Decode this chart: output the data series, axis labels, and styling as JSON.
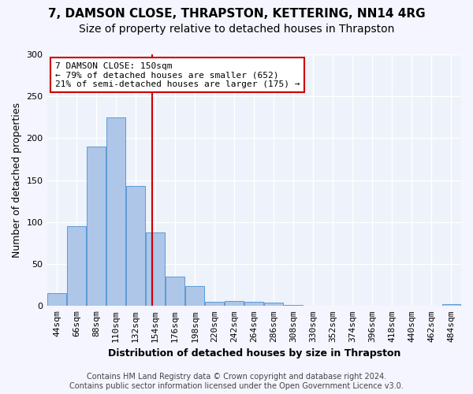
{
  "title": "7, DAMSON CLOSE, THRAPSTON, KETTERING, NN14 4RG",
  "subtitle": "Size of property relative to detached houses in Thrapston",
  "xlabel": "Distribution of detached houses by size in Thrapston",
  "ylabel": "Number of detached properties",
  "bar_color": "#aec6e8",
  "bar_edge_color": "#5b9bd5",
  "categories": [
    "44sqm",
    "66sqm",
    "88sqm",
    "110sqm",
    "132sqm",
    "154sqm",
    "176sqm",
    "198sqm",
    "220sqm",
    "242sqm",
    "264sqm",
    "286sqm",
    "308sqm",
    "330sqm",
    "352sqm",
    "374sqm",
    "396sqm",
    "418sqm",
    "440sqm",
    "462sqm",
    "484sqm"
  ],
  "values": [
    15,
    95,
    190,
    225,
    143,
    88,
    35,
    24,
    5,
    6,
    5,
    4,
    1,
    0,
    0,
    0,
    0,
    0,
    0,
    0,
    2
  ],
  "ylim": [
    0,
    300
  ],
  "yticks": [
    0,
    50,
    100,
    150,
    200,
    250,
    300
  ],
  "vline_color": "#cc0000",
  "annotation_text": "7 DAMSON CLOSE: 150sqm\n← 79% of detached houses are smaller (652)\n21% of semi-detached houses are larger (175) →",
  "annotation_box_color": "#ffffff",
  "annotation_box_edge": "#cc0000",
  "footer_text": "Contains HM Land Registry data © Crown copyright and database right 2024.\nContains public sector information licensed under the Open Government Licence v3.0.",
  "background_color": "#eef2fa",
  "grid_color": "#ffffff",
  "title_fontsize": 11,
  "subtitle_fontsize": 10,
  "axis_label_fontsize": 9,
  "tick_fontsize": 8,
  "footer_fontsize": 7
}
